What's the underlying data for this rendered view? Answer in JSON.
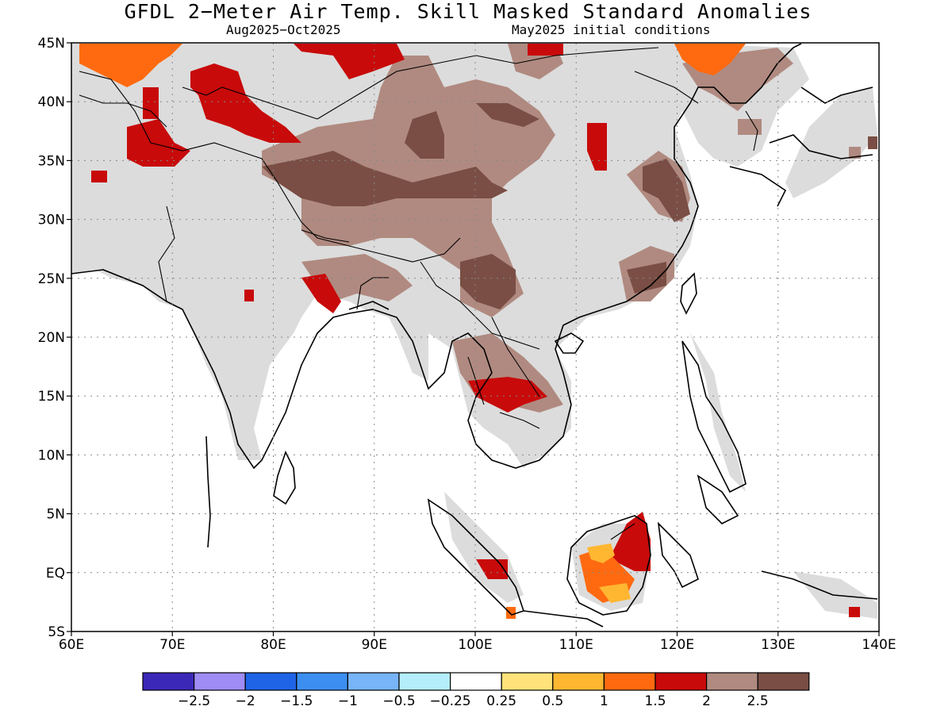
{
  "title": "GFDL 2−Meter Air Temp. Skill Masked Standard Anomalies",
  "subtitle_left": "Aug2025−Oct2025",
  "subtitle_right": "May2025 initial conditions",
  "map": {
    "lon_range": [
      60,
      140
    ],
    "lat_range": [
      -5,
      45
    ],
    "lat_labels": [
      "45N",
      "40N",
      "35N",
      "30N",
      "25N",
      "20N",
      "15N",
      "10N",
      "5N",
      "EQ",
      "5S"
    ],
    "lon_labels": [
      "60E",
      "70E",
      "80E",
      "90E",
      "100E",
      "110E",
      "120E",
      "130E",
      "140E"
    ]
  },
  "colorbar": {
    "colors": [
      "#3b28b8",
      "#9f8cf5",
      "#1f64e6",
      "#3c8ff0",
      "#78b4f8",
      "#b4eefa",
      "#ffffff",
      "#ffe27a",
      "#ffb732",
      "#ff6a10",
      "#c80a0a",
      "#b08a80",
      "#7a4e44"
    ],
    "labels": [
      "−2.5",
      "−2",
      "−1.5",
      "−1",
      "−0.5",
      "−0.25",
      "0.25",
      "0.5",
      "1",
      "1.5",
      "2",
      "2.5"
    ]
  },
  "colors": {
    "masked_gray": "#dcdcdc",
    "brown_light": "#b08a80",
    "brown_dark": "#7a4e44",
    "red": "#c80a0a",
    "orange": "#ff6a10",
    "amber": "#ffb732"
  }
}
